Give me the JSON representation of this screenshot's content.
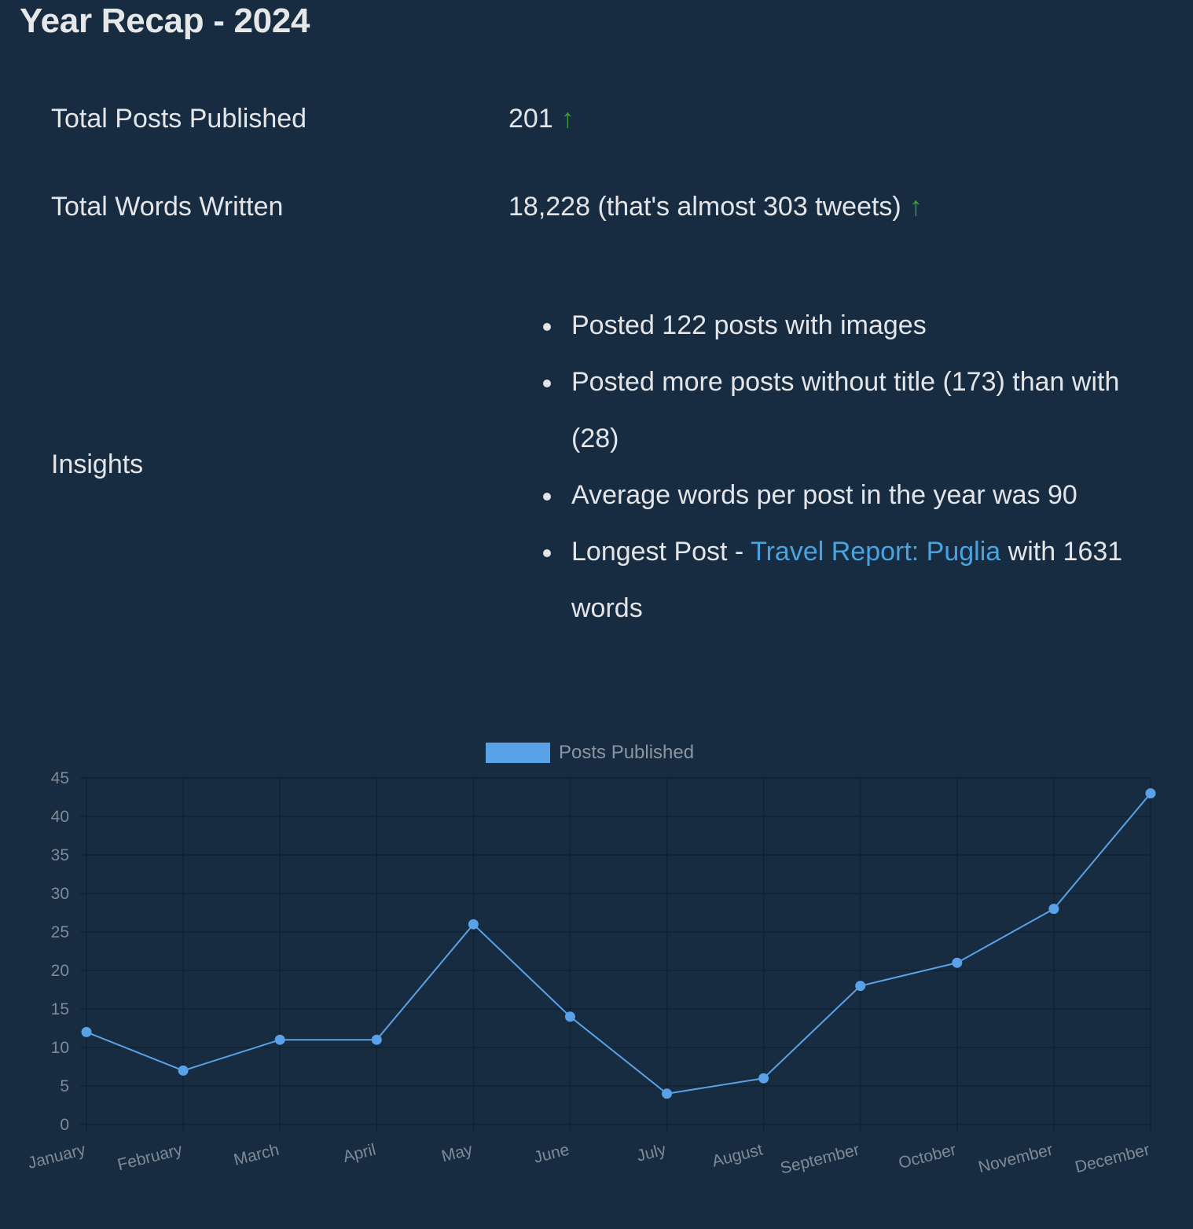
{
  "page": {
    "title": "Year Recap - 2024"
  },
  "stats": {
    "posts_label": "Total Posts Published",
    "posts_value": "201",
    "words_label": "Total Words Written",
    "words_value": "18,228 (that's almost 303 tweets)",
    "trend_icon": "arrow-up-icon",
    "trend_glyph": "↑",
    "trend_color": "#3f9a3a"
  },
  "insights": {
    "label": "Insights",
    "items": [
      "Posted 122 posts with images",
      "Posted more posts without title (173) than with (28)",
      "Average words per post in the year was 90"
    ],
    "longest": {
      "prefix": "Longest Post - ",
      "link_text": "Travel Report: Puglia",
      "suffix": " with 1631 words"
    }
  },
  "colors": {
    "background": "#172c40",
    "line": "#5aa2e8",
    "link": "#4aa3df"
  },
  "chart_data": {
    "type": "line",
    "categories": [
      "January",
      "February",
      "March",
      "April",
      "May",
      "June",
      "July",
      "August",
      "September",
      "October",
      "November",
      "December"
    ],
    "series": [
      {
        "name": "Posts Published",
        "values": [
          12,
          7,
          11,
          11,
          26,
          14,
          4,
          6,
          18,
          21,
          28,
          43
        ]
      }
    ],
    "ylim": [
      0,
      45
    ],
    "yticks": [
      0,
      5,
      10,
      15,
      20,
      25,
      30,
      35,
      40,
      45
    ],
    "grid": true,
    "legend": "top"
  }
}
